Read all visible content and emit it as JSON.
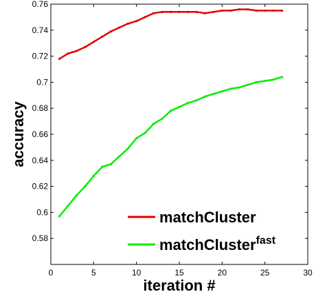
{
  "chart_data": {
    "type": "line",
    "title": "",
    "xlabel": "iteration #",
    "ylabel": "accuracy",
    "xlim": [
      0,
      30
    ],
    "ylim": [
      0.56,
      0.76
    ],
    "xticks": [
      0,
      5,
      10,
      15,
      20,
      25,
      30
    ],
    "yticks": [
      0.58,
      0.6,
      0.62,
      0.64,
      0.66,
      0.68,
      0.7,
      0.72,
      0.74,
      0.76
    ],
    "grid": false,
    "legend_position": "bottom-right",
    "series": [
      {
        "name": "matchCluster",
        "color": "#e00000",
        "x": [
          1,
          2,
          3,
          4,
          5,
          6,
          7,
          8,
          9,
          10,
          11,
          12,
          13,
          14,
          15,
          16,
          17,
          18,
          19,
          20,
          21,
          22,
          23,
          24,
          25,
          26,
          27
        ],
        "y": [
          0.718,
          0.722,
          0.724,
          0.727,
          0.731,
          0.735,
          0.739,
          0.742,
          0.745,
          0.747,
          0.75,
          0.753,
          0.754,
          0.754,
          0.754,
          0.754,
          0.754,
          0.753,
          0.754,
          0.755,
          0.755,
          0.756,
          0.756,
          0.755,
          0.755,
          0.755,
          0.755
        ]
      },
      {
        "name": "matchCluster",
        "name_superscript": "fast",
        "color": "#00ee00",
        "x": [
          1,
          2,
          3,
          4,
          5,
          6,
          7,
          8,
          9,
          10,
          11,
          12,
          13,
          14,
          15,
          16,
          17,
          18,
          19,
          20,
          21,
          22,
          23,
          24,
          25,
          26,
          27
        ],
        "y": [
          0.597,
          0.605,
          0.613,
          0.62,
          0.628,
          0.635,
          0.637,
          0.643,
          0.649,
          0.657,
          0.661,
          0.668,
          0.672,
          0.678,
          0.681,
          0.684,
          0.686,
          0.689,
          0.691,
          0.693,
          0.695,
          0.696,
          0.698,
          0.7,
          0.701,
          0.702,
          0.704
        ]
      }
    ]
  }
}
